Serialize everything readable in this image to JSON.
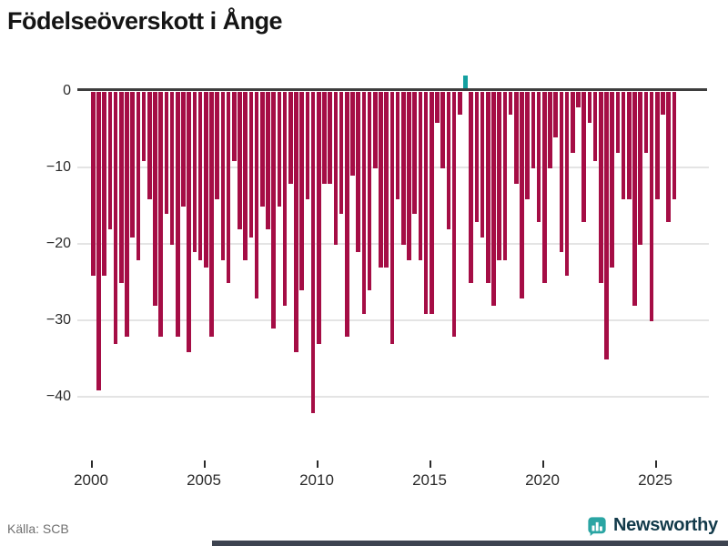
{
  "header": {
    "title": "Födelseöverskott i Ånge"
  },
  "chart_data": {
    "type": "bar",
    "title": "Födelseöverskott i Ånge",
    "frequency": "quarterly",
    "categories": [
      "2000 Q1",
      "2000 Q2",
      "2000 Q3",
      "2000 Q4",
      "2001 Q1",
      "2001 Q2",
      "2001 Q3",
      "2001 Q4",
      "2002 Q1",
      "2002 Q2",
      "2002 Q3",
      "2002 Q4",
      "2003 Q1",
      "2003 Q2",
      "2003 Q3",
      "2003 Q4",
      "2004 Q1",
      "2004 Q2",
      "2004 Q3",
      "2004 Q4",
      "2005 Q1",
      "2005 Q2",
      "2005 Q3",
      "2005 Q4",
      "2006 Q1",
      "2006 Q2",
      "2006 Q3",
      "2006 Q4",
      "2007 Q1",
      "2007 Q2",
      "2007 Q3",
      "2007 Q4",
      "2008 Q1",
      "2008 Q2",
      "2008 Q3",
      "2008 Q4",
      "2009 Q1",
      "2009 Q2",
      "2009 Q3",
      "2009 Q4",
      "2010 Q1",
      "2010 Q2",
      "2010 Q3",
      "2010 Q4",
      "2011 Q1",
      "2011 Q2",
      "2011 Q3",
      "2011 Q4",
      "2012 Q1",
      "2012 Q2",
      "2012 Q3",
      "2012 Q4",
      "2013 Q1",
      "2013 Q2",
      "2013 Q3",
      "2013 Q4",
      "2014 Q1",
      "2014 Q2",
      "2014 Q3",
      "2014 Q4",
      "2015 Q1",
      "2015 Q2",
      "2015 Q3",
      "2015 Q4",
      "2016 Q1",
      "2016 Q2",
      "2016 Q3",
      "2016 Q4",
      "2017 Q1",
      "2017 Q2",
      "2017 Q3",
      "2017 Q4",
      "2018 Q1",
      "2018 Q2",
      "2018 Q3",
      "2018 Q4",
      "2019 Q1",
      "2019 Q2",
      "2019 Q3",
      "2019 Q4",
      "2020 Q1",
      "2020 Q2",
      "2020 Q3",
      "2020 Q4",
      "2021 Q1",
      "2021 Q2",
      "2021 Q3",
      "2021 Q4",
      "2022 Q1",
      "2022 Q2",
      "2022 Q3",
      "2022 Q4",
      "2023 Q1",
      "2023 Q2",
      "2023 Q3",
      "2023 Q4",
      "2024 Q1",
      "2024 Q2",
      "2024 Q3",
      "2024 Q4",
      "2025 Q1",
      "2025 Q2",
      "2025 Q3",
      "2025 Q4"
    ],
    "values": [
      -24,
      -39,
      -24,
      -18,
      -33,
      -25,
      -32,
      -19,
      -22,
      -9,
      -14,
      -28,
      -32,
      -16,
      -20,
      -32,
      -15,
      -34,
      -21,
      -22,
      -23,
      -32,
      -14,
      -22,
      -25,
      -9,
      -18,
      -22,
      -19,
      -27,
      -15,
      -18,
      -31,
      -15,
      -28,
      -12,
      -34,
      -26,
      -14,
      -42,
      -33,
      -12,
      -12,
      -20,
      -16,
      -32,
      -11,
      -21,
      -29,
      -26,
      -10,
      -23,
      -23,
      -33,
      -14,
      -20,
      -22,
      -16,
      -22,
      -29,
      -29,
      -4,
      -10,
      -18,
      -32,
      -3,
      2,
      -25,
      -17,
      -19,
      -25,
      -28,
      -22,
      -22,
      -3,
      -12,
      -27,
      -14,
      -10,
      -17,
      -25,
      -10,
      -6,
      -21,
      -24,
      -8,
      -2,
      -17,
      -4,
      -9,
      -25,
      -35,
      -23,
      -8,
      -14,
      -14,
      -28,
      -20,
      -8,
      -30,
      -14,
      -3,
      -17,
      -14
    ],
    "x_tick_labels": [
      "2000",
      "2005",
      "2010",
      "2015",
      "2020",
      "2025"
    ],
    "x_tick_years": [
      2000,
      2005,
      2010,
      2015,
      2020,
      2025
    ],
    "y_ticks": [
      0,
      -10,
      -20,
      -30,
      -40
    ],
    "y_tick_labels": [
      "0",
      "−10",
      "−20",
      "−30",
      "−40"
    ],
    "ylim": [
      -45,
      3
    ],
    "grid": true,
    "legend": "none",
    "bar_color_negative": "#a50d45",
    "bar_color_positive": "#14a0a0"
  },
  "footer": {
    "source": "Källa: SCB",
    "brand": "Newsworthy"
  },
  "colors": {
    "axis": "#3d3d3d",
    "gridline": "#e4e4e4",
    "tick_text": "#2b2b2b",
    "source_text": "#6f6f6f",
    "brand_teal": "#2aa5a3",
    "brand_text": "#123a4a",
    "bottom_strip": "#3d4350"
  }
}
